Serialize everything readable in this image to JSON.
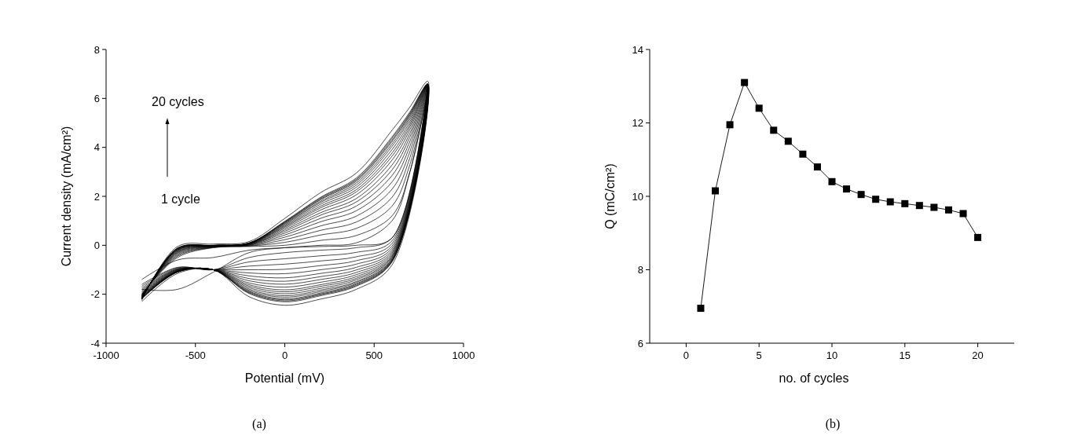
{
  "chart_data": [
    {
      "type": "line",
      "xlabel": "Potential (mV)",
      "ylabel": "Current density (mA/cm²)",
      "xlim": [
        -1000,
        1000
      ],
      "xticks": [
        -1000,
        -500,
        0,
        500,
        1000
      ],
      "ylim": [
        -4,
        8
      ],
      "yticks": [
        -4,
        -2,
        0,
        2,
        4,
        6,
        8
      ],
      "marker": "none",
      "line_style": "solid",
      "grid": false,
      "x": [
        -800,
        -600,
        -400,
        -200,
        0,
        200,
        400,
        600,
        700,
        800,
        600,
        400,
        200,
        0,
        -200,
        -400,
        -600,
        -800
      ],
      "annotations": [
        "20 cycles",
        "1 cycle",
        "(a)"
      ],
      "series": [
        {
          "color": "#000000",
          "values": [
            -1.8,
            -1.8,
            -1.1,
            -0.3,
            -0.1,
            0.0,
            0.1,
            1.0,
            3.0,
            6.4,
            0.3,
            0.0,
            -0.05,
            -0.1,
            -0.2,
            -0.5,
            -0.6,
            -1.4
          ]
        },
        {
          "color": "#000000",
          "values": [
            -2.0,
            -0.5,
            -0.1,
            -0.05,
            0.0,
            0.2,
            0.4,
            1.2,
            3.0,
            6.4,
            0.3,
            -0.1,
            -0.2,
            -0.3,
            -0.5,
            -1.0,
            -0.9,
            -1.6
          ]
        },
        {
          "color": "#000000",
          "values": [
            -2.02,
            -0.45,
            -0.09,
            -0.03,
            0.12,
            0.42,
            0.69,
            1.6,
            3.3,
            6.42,
            0.18,
            -0.29,
            -0.43,
            -0.55,
            -0.68,
            -1.0,
            -0.92,
            -1.67
          ]
        },
        {
          "color": "#000000",
          "values": [
            -2.05,
            -0.41,
            -0.08,
            -0.02,
            0.23,
            0.61,
            0.95,
            1.96,
            3.58,
            6.45,
            0.07,
            -0.47,
            -0.64,
            -0.77,
            -0.85,
            -1.0,
            -0.95,
            -1.74
          ]
        },
        {
          "color": "#000000",
          "values": [
            -2.07,
            -0.37,
            -0.07,
            0.0,
            0.33,
            0.79,
            1.19,
            2.29,
            3.83,
            6.47,
            -0.03,
            -0.63,
            -0.83,
            -0.98,
            -1.0,
            -1.0,
            -0.97,
            -1.8
          ]
        },
        {
          "color": "#000000",
          "values": [
            -2.08,
            -0.33,
            -0.06,
            0.01,
            0.42,
            0.96,
            1.41,
            2.59,
            4.05,
            6.48,
            -0.12,
            -0.77,
            -1.0,
            -1.16,
            -1.13,
            -1.0,
            -0.98,
            -1.85
          ]
        },
        {
          "color": "#000000",
          "values": [
            -2.1,
            -0.3,
            -0.05,
            0.03,
            0.5,
            1.1,
            1.6,
            2.85,
            4.25,
            6.5,
            -0.2,
            -0.9,
            -1.15,
            -1.33,
            -1.25,
            -1.0,
            -1.0,
            -1.9
          ]
        },
        {
          "color": "#000000",
          "values": [
            -2.11,
            -0.27,
            -0.04,
            0.04,
            0.57,
            1.23,
            1.77,
            3.08,
            4.43,
            6.51,
            -0.27,
            -1.01,
            -1.28,
            -1.47,
            -1.36,
            -1.0,
            -1.01,
            -1.94
          ]
        },
        {
          "color": "#000000",
          "values": [
            -2.13,
            -0.25,
            -0.04,
            0.04,
            0.63,
            1.33,
            1.91,
            3.28,
            4.58,
            6.53,
            -0.33,
            -1.11,
            -1.4,
            -1.59,
            -1.45,
            -1.0,
            -1.03,
            -1.98
          ]
        },
        {
          "color": "#000000",
          "values": [
            -2.14,
            -0.22,
            -0.03,
            0.05,
            0.69,
            1.44,
            2.06,
            3.48,
            4.73,
            6.54,
            -0.39,
            -1.2,
            -1.51,
            -1.71,
            -1.54,
            -1.0,
            -1.04,
            -2.01
          ]
        },
        {
          "color": "#000000",
          "values": [
            -2.15,
            -0.2,
            -0.03,
            0.06,
            0.74,
            1.53,
            2.18,
            3.64,
            4.85,
            6.55,
            -0.44,
            -1.28,
            -1.61,
            -1.82,
            -1.61,
            -1.0,
            -1.05,
            -2.04
          ]
        },
        {
          "color": "#000000",
          "values": [
            -2.16,
            -0.19,
            -0.02,
            0.07,
            0.78,
            1.6,
            2.27,
            3.77,
            4.95,
            6.56,
            -0.48,
            -1.35,
            -1.68,
            -1.9,
            -1.67,
            -1.0,
            -1.06,
            -2.07
          ]
        },
        {
          "color": "#000000",
          "values": [
            -2.16,
            -0.17,
            -0.02,
            0.07,
            0.82,
            1.68,
            2.37,
            3.91,
            5.05,
            6.56,
            -0.52,
            -1.41,
            -1.76,
            -1.98,
            -1.73,
            -1.0,
            -1.06,
            -2.09
          ]
        },
        {
          "color": "#000000",
          "values": [
            -2.17,
            -0.16,
            -0.01,
            0.08,
            0.86,
            1.75,
            2.46,
            4.04,
            5.15,
            6.57,
            -0.56,
            -1.48,
            -1.83,
            -2.06,
            -1.79,
            -1.0,
            -1.07,
            -2.12
          ]
        },
        {
          "color": "#000000",
          "values": [
            -2.18,
            -0.14,
            -0.01,
            0.08,
            0.89,
            1.8,
            2.54,
            4.14,
            5.23,
            6.58,
            -0.59,
            -1.52,
            -1.89,
            -2.12,
            -1.84,
            -1.0,
            -1.08,
            -2.13
          ]
        },
        {
          "color": "#000000",
          "values": [
            -2.18,
            -0.13,
            -0.01,
            0.09,
            0.92,
            1.86,
            2.61,
            4.24,
            5.3,
            6.58,
            -0.62,
            -1.57,
            -1.95,
            -2.19,
            -1.88,
            -1.0,
            -1.08,
            -2.15
          ]
        },
        {
          "color": "#000000",
          "values": [
            -2.19,
            -0.12,
            -0.01,
            0.09,
            0.94,
            1.89,
            2.66,
            4.3,
            5.35,
            6.59,
            -0.64,
            -1.6,
            -1.99,
            -2.23,
            -1.91,
            -1.0,
            -1.09,
            -2.16
          ]
        },
        {
          "color": "#000000",
          "values": [
            -2.19,
            -0.12,
            0.0,
            0.09,
            0.96,
            1.93,
            2.7,
            4.37,
            5.4,
            6.59,
            -0.66,
            -1.64,
            -2.02,
            -2.27,
            -1.94,
            -1.0,
            -1.09,
            -2.18
          ]
        },
        {
          "color": "#000000",
          "values": [
            -2.2,
            -0.11,
            0.0,
            0.1,
            0.98,
            1.96,
            2.75,
            4.43,
            5.45,
            6.6,
            -0.68,
            -1.67,
            -2.06,
            -2.31,
            -1.97,
            -1.0,
            -1.1,
            -2.19
          ]
        },
        {
          "color": "#000000",
          "values": [
            -2.25,
            -0.05,
            0.05,
            0.15,
            1.1,
            2.15,
            2.95,
            4.7,
            5.65,
            6.7,
            -0.8,
            -1.8,
            -2.2,
            -2.45,
            -2.1,
            -1.0,
            -1.15,
            -2.3
          ]
        }
      ]
    },
    {
      "type": "line",
      "xlabel": "no. of cycles",
      "ylabel": "Q (mC/cm²)",
      "xlim": [
        -2.5,
        22.5
      ],
      "xticks": [
        0,
        5,
        10,
        15,
        20
      ],
      "ylim": [
        6,
        14
      ],
      "yticks": [
        6,
        8,
        10,
        12,
        14
      ],
      "marker": "square",
      "line_style": "solid",
      "grid": false,
      "x": [
        1,
        2,
        3,
        4,
        5,
        6,
        7,
        8,
        9,
        10,
        11,
        12,
        13,
        14,
        15,
        16,
        17,
        18,
        19,
        20
      ],
      "annotations": [
        "(b)"
      ],
      "series": [
        {
          "color": "#000000",
          "values": [
            6.95,
            10.15,
            11.95,
            13.1,
            12.4,
            11.8,
            11.5,
            11.15,
            10.8,
            10.4,
            10.2,
            10.05,
            9.92,
            9.85,
            9.8,
            9.75,
            9.7,
            9.63,
            9.53,
            8.88
          ]
        }
      ]
    }
  ]
}
